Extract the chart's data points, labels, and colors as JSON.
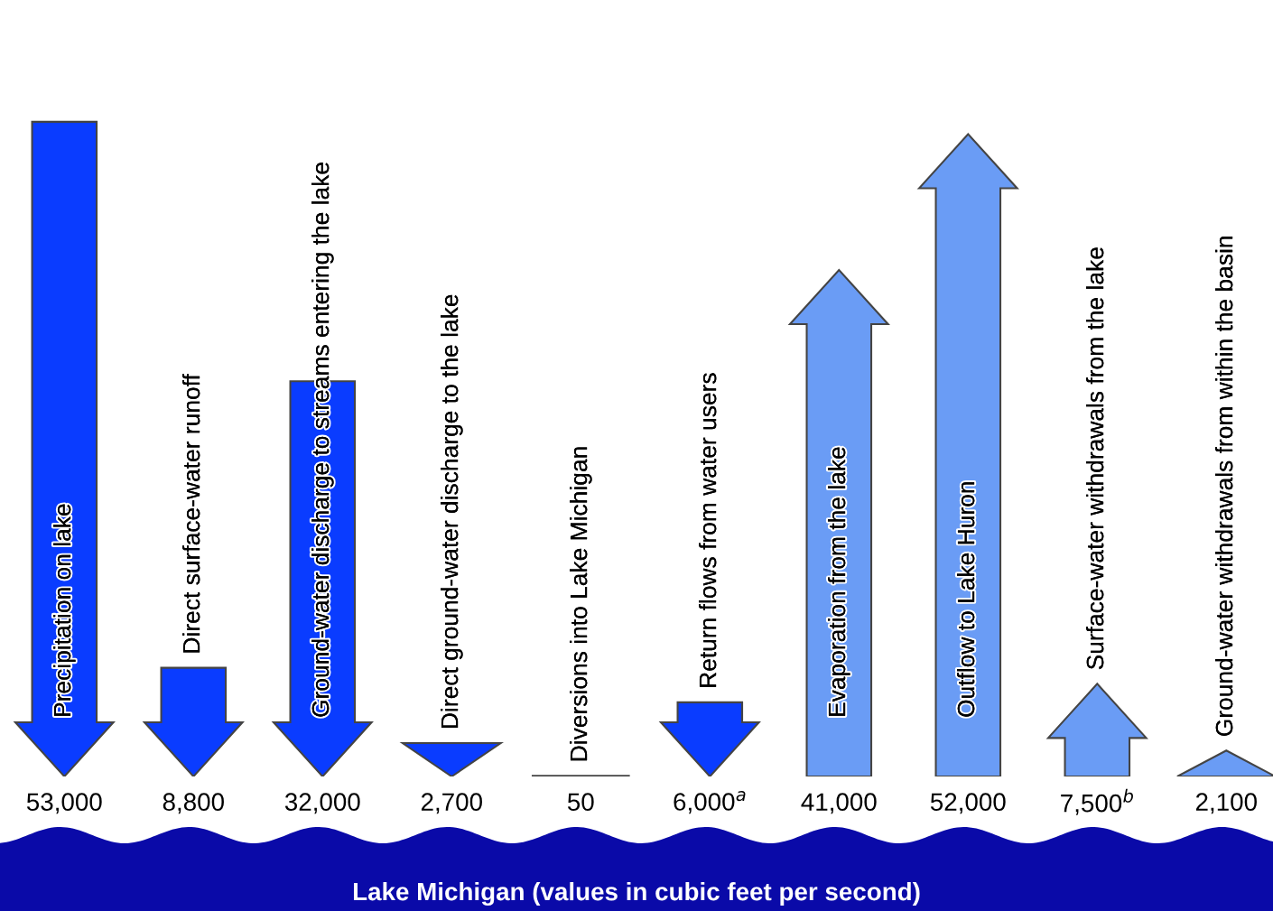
{
  "chart_data": [
    {
      "type": "other",
      "categories": [
        "Precipitation on lake",
        "Direct surface-water runoff",
        "Ground-water discharge to streams entering the lake",
        "Direct ground-water discharge to the lake",
        "Diversions into Lake Michigan",
        "Return flows from water users"
      ],
      "series": [
        {
          "color": "#0a3cff",
          "values": [
            53000,
            8800,
            32000,
            2700,
            50,
            6000
          ],
          "value_labels": [
            "53,000",
            "8,800",
            "32,000",
            "2,700",
            "50",
            "6,000$^{a}$"
          ]
        }
      ],
      "annotations": [
        "Lake Michigan (values in cubic feet per second)"
      ]
    },
    {
      "type": "other",
      "categories": [
        "Evaporation from the lake",
        "Outflow to Lake Huron",
        "Surface-water withdrawals from the lake",
        "Ground-water withdrawals from within the basin"
      ],
      "series": [
        {
          "color": "#6a9cf5",
          "values": [
            41000,
            52000,
            7500,
            2100
          ],
          "value_labels": [
            "41,000",
            "52,000",
            "7,500$^{b}$",
            "2,100"
          ]
        }
      ]
    }
  ]
}
